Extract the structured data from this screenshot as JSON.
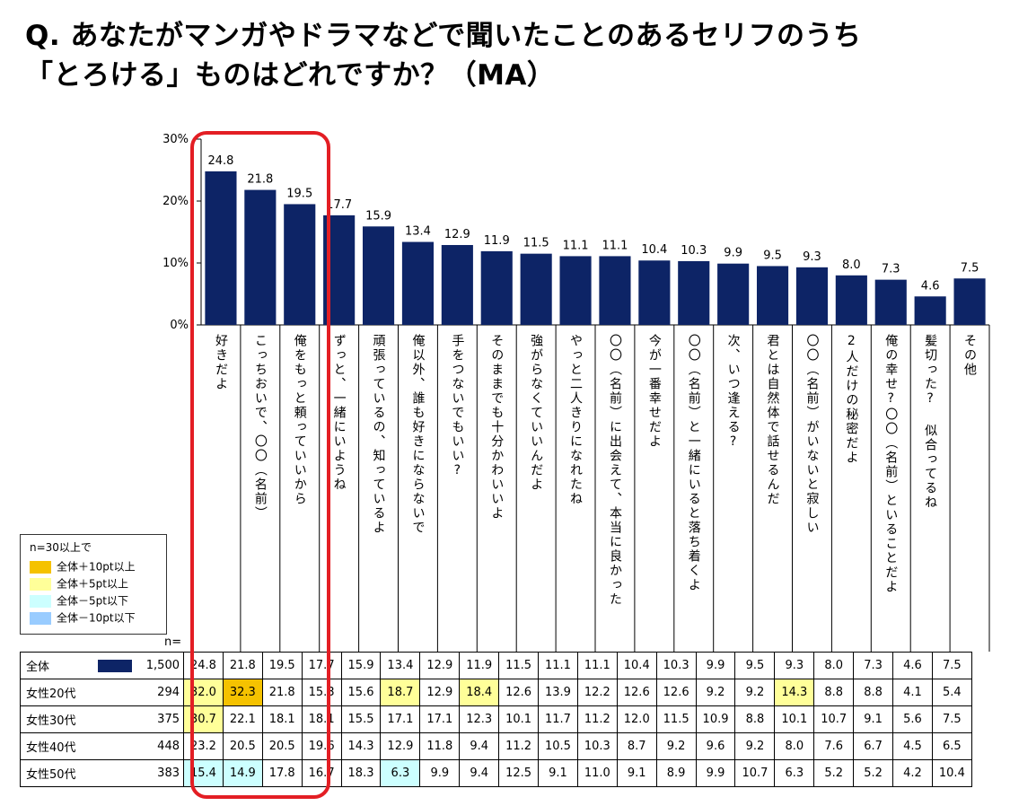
{
  "title": {
    "line1": "Q.  あなたがマンガやドラマなどで聞いたことのあるセリフのうち",
    "line2": "「とろける」ものはどれですか？（MA）"
  },
  "colors": {
    "bar": "#0d2466",
    "highlight_frame": "#e31e24",
    "plus10": "#f5c200",
    "plus5": "#ffff99",
    "minus5": "#ccffff",
    "minus10": "#99ccff"
  },
  "legend": {
    "header": "n=30以上で",
    "items": [
      {
        "label": "全体＋10pt以上",
        "color": "#f5c200"
      },
      {
        "label": "全体＋5pt以上",
        "color": "#ffff99"
      },
      {
        "label": "全体－5pt以下",
        "color": "#ccffff"
      },
      {
        "label": "全体－10pt以下",
        "color": "#99ccff"
      }
    ]
  },
  "table": {
    "n_header": "n=",
    "rows": [
      {
        "label": "全体",
        "n": "1,500",
        "values": [
          "24.8",
          "21.8",
          "19.5",
          "17.7",
          "15.9",
          "13.4",
          "12.9",
          "11.9",
          "11.5",
          "11.1",
          "11.1",
          "10.4",
          "10.3",
          "9.9",
          "9.5",
          "9.3",
          "8.0",
          "7.3",
          "4.6",
          "7.5"
        ],
        "colors": [
          "",
          "",
          "",
          "",
          "",
          "",
          "",
          "",
          "",
          "",
          "",
          "",
          "",
          "",
          "",
          "",
          "",
          "",
          "",
          ""
        ]
      },
      {
        "label": "女性20代",
        "n": "294",
        "values": [
          "32.0",
          "32.3",
          "21.8",
          "15.3",
          "15.6",
          "18.7",
          "12.9",
          "18.4",
          "12.6",
          "13.9",
          "12.2",
          "12.6",
          "12.6",
          "9.2",
          "9.2",
          "14.3",
          "8.8",
          "8.8",
          "4.1",
          "5.4"
        ],
        "colors": [
          "plus5",
          "plus10",
          "",
          "",
          "",
          "plus5",
          "",
          "plus5",
          "",
          "",
          "",
          "",
          "",
          "",
          "",
          "plus5",
          "",
          "",
          "",
          ""
        ]
      },
      {
        "label": "女性30代",
        "n": "375",
        "values": [
          "30.7",
          "22.1",
          "18.1",
          "18.1",
          "15.5",
          "17.1",
          "17.1",
          "12.3",
          "10.1",
          "11.7",
          "11.2",
          "12.0",
          "11.5",
          "10.9",
          "8.8",
          "10.1",
          "10.7",
          "9.1",
          "5.6",
          "7.5"
        ],
        "colors": [
          "plus5",
          "",
          "",
          "",
          "",
          "",
          "",
          "",
          "",
          "",
          "",
          "",
          "",
          "",
          "",
          "",
          "",
          "",
          "",
          ""
        ]
      },
      {
        "label": "女性40代",
        "n": "448",
        "values": [
          "23.2",
          "20.5",
          "20.5",
          "19.6",
          "14.3",
          "12.9",
          "11.8",
          "9.4",
          "11.2",
          "10.5",
          "10.3",
          "8.7",
          "9.2",
          "9.6",
          "9.2",
          "8.0",
          "7.6",
          "6.7",
          "4.5",
          "6.5"
        ],
        "colors": [
          "",
          "",
          "",
          "",
          "",
          "",
          "",
          "",
          "",
          "",
          "",
          "",
          "",
          "",
          "",
          "",
          "",
          "",
          "",
          ""
        ]
      },
      {
        "label": "女性50代",
        "n": "383",
        "values": [
          "15.4",
          "14.9",
          "17.8",
          "16.7",
          "18.3",
          "6.3",
          "9.9",
          "9.4",
          "12.5",
          "9.1",
          "11.0",
          "9.1",
          "8.9",
          "9.9",
          "10.7",
          "6.3",
          "5.2",
          "5.2",
          "4.2",
          "10.4"
        ],
        "colors": [
          "minus5",
          "minus5",
          "",
          "",
          "",
          "minus5",
          "",
          "",
          "",
          "",
          "",
          "",
          "",
          "",
          "",
          "",
          "",
          "",
          "",
          ""
        ]
      }
    ]
  },
  "chart_data": {
    "type": "bar",
    "title": "",
    "ylim": [
      0,
      30
    ],
    "yticks": [
      "0%",
      "10%",
      "20%",
      "30%"
    ],
    "categories": [
      "好きだよ",
      "こっちおいで、〇〇（名前）",
      "俺をもっと頼っていいから",
      "ずっと、一緒にいようね",
      "頑張っているの、知っているよ",
      "俺以外、誰も好きにならないで",
      "手をつないでもいい?",
      "そのままでも十分かわいいよ",
      "強がらなくていいんだよ",
      "やっと二人きりになれたね",
      "〇〇（名前）に出会えて、本当に良かった",
      "今が一番幸せだよ",
      "〇〇（名前）と一緒にいると落ち着くよ",
      "次、いつ逢える?",
      "君とは自然体で話せるんだ",
      "〇〇（名前）がいないと寂しい",
      "2人だけの秘密だよ",
      "俺の幸せ?〇〇（名前）といることだよ",
      "髪切った?  似合ってるね",
      "その他"
    ],
    "series": [
      {
        "name": "全体",
        "values": [
          24.8,
          21.8,
          19.5,
          17.7,
          15.9,
          13.4,
          12.9,
          11.9,
          11.5,
          11.1,
          11.1,
          10.4,
          10.3,
          9.9,
          9.5,
          9.3,
          8.0,
          7.3,
          4.6,
          7.5
        ]
      }
    ],
    "value_labels": [
      "24.8",
      "21.8",
      "19.5",
      "17.7",
      "15.9",
      "13.4",
      "12.9",
      "11.9",
      "11.5",
      "11.1",
      "11.1",
      "10.4",
      "10.3",
      "9.9",
      "9.5",
      "9.3",
      "8.0",
      "7.3",
      "4.6",
      "7.5"
    ]
  }
}
